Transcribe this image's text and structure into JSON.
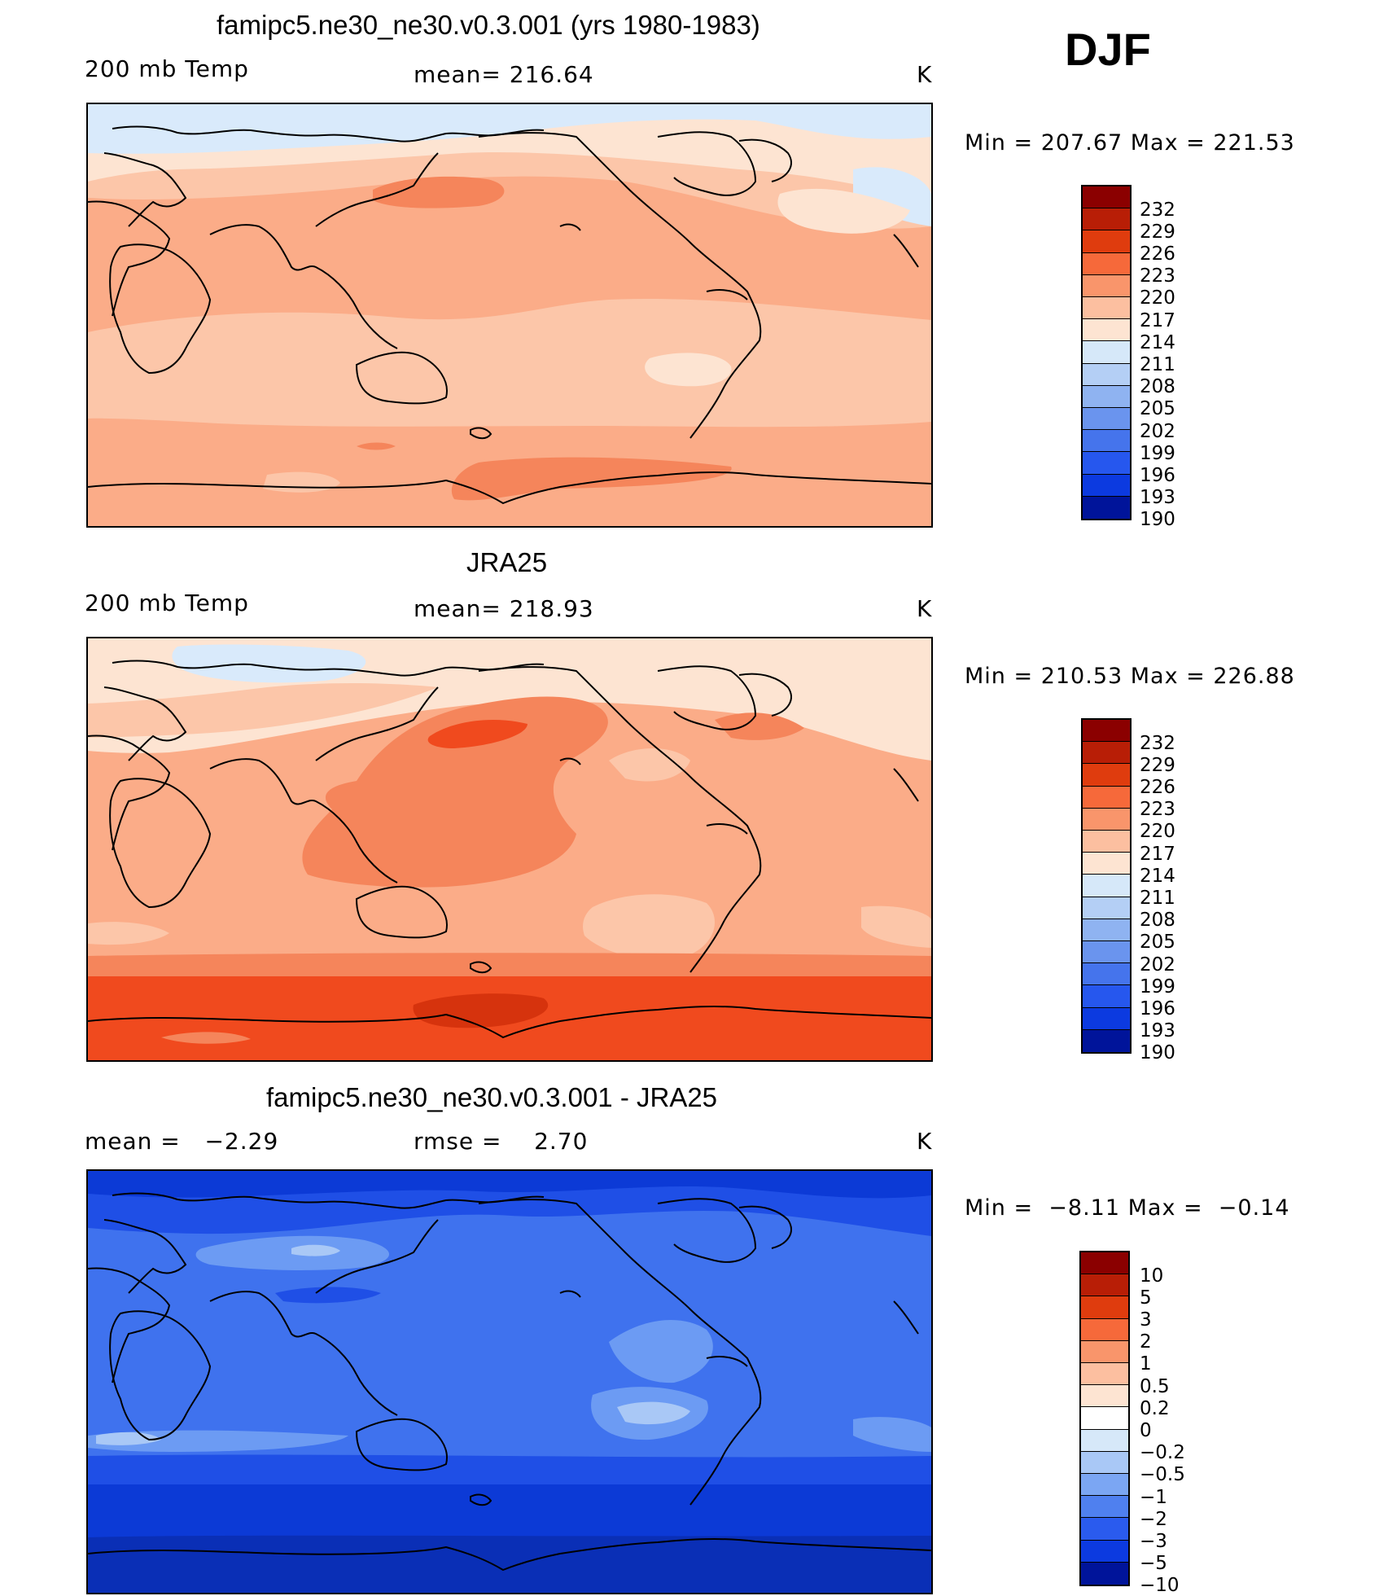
{
  "season": "DJF",
  "units": "K",
  "panels": [
    {
      "id": "model",
      "title": "famipc5.ne30_ne30.v0.3.001 (yrs 1980-1983)",
      "left_label": "200 mb Temp",
      "center_label": "mean= 216.64",
      "right_label": "K",
      "minmax": "Min = 207.67 Max = 221.53",
      "colorbar_labels": [
        "232",
        "229",
        "226",
        "223",
        "220",
        "217",
        "214",
        "211",
        "208",
        "205",
        "202",
        "199",
        "196",
        "193",
        "190"
      ],
      "colorbar_colors": [
        "#8b0000",
        "#b81e06",
        "#df3c0e",
        "#f6693a",
        "#f9956b",
        "#fcbfa0",
        "#fde4d2",
        "#d6e8f9",
        "#b4cff5",
        "#8fb3f1",
        "#6a94ee",
        "#4574ec",
        "#2657ee",
        "#0c3ae0",
        "#00149a"
      ],
      "field_colors": {
        "base": "#fbac88",
        "cool": "#fcc6a9",
        "pale": "#fde4d2",
        "ice": "#d9eafb",
        "warm": "#f5855b"
      }
    },
    {
      "id": "obs",
      "title": "JRA25",
      "left_label": "200 mb Temp",
      "center_label": "mean= 218.93",
      "right_label": "K",
      "minmax": "Min = 210.53 Max = 226.88",
      "colorbar_labels": [
        "232",
        "229",
        "226",
        "223",
        "220",
        "217",
        "214",
        "211",
        "208",
        "205",
        "202",
        "199",
        "196",
        "193",
        "190"
      ],
      "colorbar_colors": [
        "#8b0000",
        "#b81e06",
        "#df3c0e",
        "#f6693a",
        "#f9956b",
        "#fcbfa0",
        "#fde4d2",
        "#d6e8f9",
        "#b4cff5",
        "#8fb3f1",
        "#6a94ee",
        "#4574ec",
        "#2657ee",
        "#0c3ae0",
        "#00149a"
      ],
      "field_colors": {
        "base": "#fbac88",
        "cool": "#fcc6a9",
        "pale": "#fde4d2",
        "ice": "#d9eafb",
        "warm": "#f5855b",
        "hot": "#f04a1e",
        "hotter": "#d6330d"
      }
    },
    {
      "id": "diff",
      "title": "famipc5.ne30_ne30.v0.3.001 - JRA25",
      "left_label": "mean =   −2.29",
      "center_label": "rmse =    2.70",
      "right_label": "K",
      "minmax": "Min =  −8.11 Max =  −0.14",
      "colorbar_labels": [
        "10",
        "5",
        "3",
        "2",
        "1",
        "0.5",
        "0.2",
        "0",
        "−0.2",
        "−0.5",
        "−1",
        "−2",
        "−3",
        "−5",
        "−10"
      ],
      "colorbar_colors": [
        "#8b0000",
        "#b81e06",
        "#df3c0e",
        "#f6693a",
        "#f9956b",
        "#fcbfa0",
        "#fde4d2",
        "#ffffff",
        "#d6e8f9",
        "#a9c8f6",
        "#7ba6f3",
        "#4f80ef",
        "#2a5bee",
        "#0c3ae0",
        "#00149a"
      ],
      "field_colors": {
        "base": "#3f72ee",
        "mid": "#6c9bf3",
        "light": "#a9c8f6",
        "dark": "#1f4fe6",
        "darker": "#0c3ad6",
        "deep": "#0a2fb6"
      }
    }
  ],
  "chart_data": [
    {
      "type": "heatmap",
      "title": "famipc5.ne30_ne30.v0.3.001 (yrs 1980-1983)",
      "variable": "200 mb Temp",
      "units": "K",
      "mean": 216.64,
      "min": 207.67,
      "max": 221.53,
      "levels": [
        190,
        193,
        196,
        199,
        202,
        205,
        208,
        211,
        214,
        217,
        220,
        223,
        226,
        229,
        232
      ]
    },
    {
      "type": "heatmap",
      "title": "JRA25",
      "variable": "200 mb Temp",
      "units": "K",
      "mean": 218.93,
      "min": 210.53,
      "max": 226.88,
      "levels": [
        190,
        193,
        196,
        199,
        202,
        205,
        208,
        211,
        214,
        217,
        220,
        223,
        226,
        229,
        232
      ]
    },
    {
      "type": "heatmap",
      "title": "famipc5.ne30_ne30.v0.3.001 - JRA25",
      "units": "K",
      "mean": -2.29,
      "rmse": 2.7,
      "min": -8.11,
      "max": -0.14,
      "levels": [
        -10,
        -5,
        -3,
        -2,
        -1,
        -0.5,
        -0.2,
        0,
        0.2,
        0.5,
        1,
        2,
        3,
        5,
        10
      ]
    }
  ]
}
